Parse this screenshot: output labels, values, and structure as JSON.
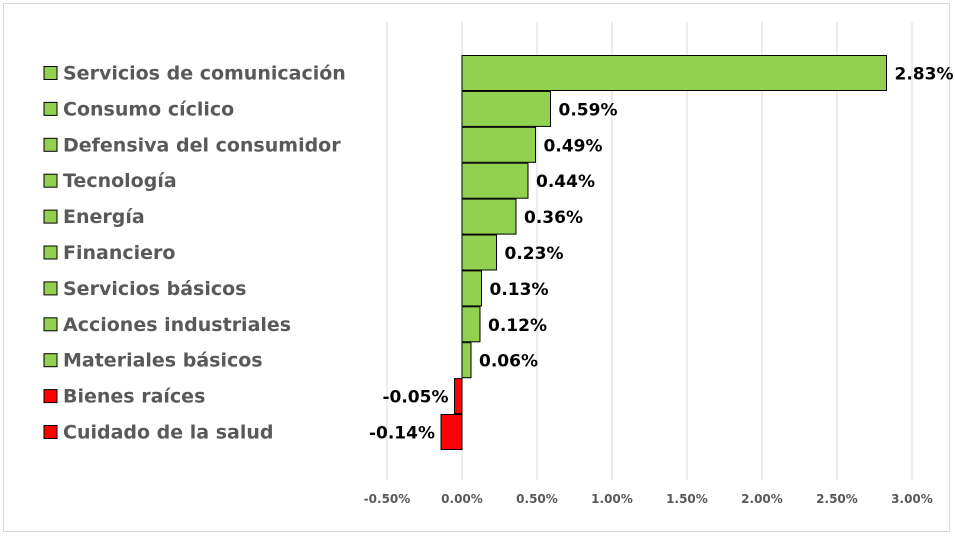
{
  "chart_data": {
    "type": "bar",
    "orientation": "horizontal",
    "title": "",
    "xlabel": "",
    "ylabel": "",
    "categories": [
      "Servicios de comunicación",
      "Consumo cíclico",
      "Defensiva del consumidor",
      "Tecnología",
      "Energía",
      "Financiero",
      "Servicios básicos",
      "Acciones industriales",
      "Materiales básicos",
      "Bienes raíces",
      "Cuidado de la salud"
    ],
    "values": [
      2.83,
      0.59,
      0.49,
      0.44,
      0.36,
      0.23,
      0.13,
      0.12,
      0.06,
      -0.05,
      -0.14
    ],
    "value_labels": [
      "2.83%",
      "0.59%",
      "0.49%",
      "0.44%",
      "0.36%",
      "0.23%",
      "0.13%",
      "0.12%",
      "0.06%",
      "-0.05%",
      "-0.14%"
    ],
    "xlim": [
      -0.5,
      3.0
    ],
    "ticks": [
      -0.5,
      0.0,
      0.5,
      1.0,
      1.5,
      2.0,
      2.5,
      3.0
    ],
    "tick_labels": [
      "-0.50%",
      "0.00%",
      "0.50%",
      "1.00%",
      "1.50%",
      "2.00%",
      "2.50%",
      "3.00%"
    ],
    "grid": true,
    "legend_position": "left",
    "colors": {
      "positive": "#92d050",
      "negative": "#ff0000"
    }
  }
}
